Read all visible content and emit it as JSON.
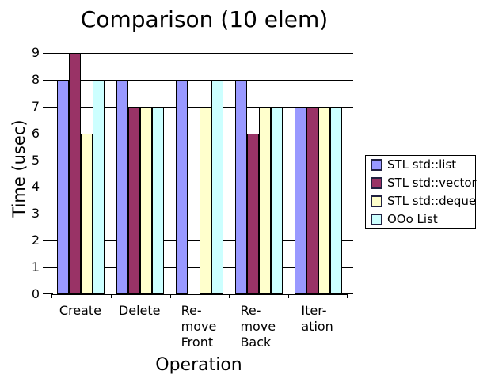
{
  "chart_data": {
    "type": "bar",
    "title": "Comparison (10 elem)",
    "xlabel": "Operation",
    "ylabel": "Time (usec)",
    "ylim": [
      0,
      9
    ],
    "y_ticks": [
      0,
      1,
      2,
      3,
      4,
      5,
      6,
      7,
      8,
      9
    ],
    "grid": true,
    "legend_position": "right",
    "categories": [
      "Create",
      "Delete",
      "Remove Front",
      "Remove Back",
      "Iteration"
    ],
    "category_labels": [
      [
        "Create"
      ],
      [
        "Delete"
      ],
      [
        "Re-",
        "move",
        "Front"
      ],
      [
        "Re-",
        "move",
        "Back"
      ],
      [
        "Iter-",
        "ation"
      ]
    ],
    "series": [
      {
        "name": "STL std::list",
        "color": "#9999FF",
        "values": [
          8,
          8,
          8,
          8,
          7
        ]
      },
      {
        "name": "STL std::vector",
        "color": "#993366",
        "values": [
          9,
          7,
          0,
          6,
          7
        ]
      },
      {
        "name": "STL std::deque",
        "color": "#FFFFCC",
        "values": [
          6,
          7,
          7,
          7,
          7
        ]
      },
      {
        "name": "OOo List",
        "color": "#CCFFFF",
        "values": [
          8,
          7,
          8,
          7,
          7
        ]
      }
    ]
  }
}
